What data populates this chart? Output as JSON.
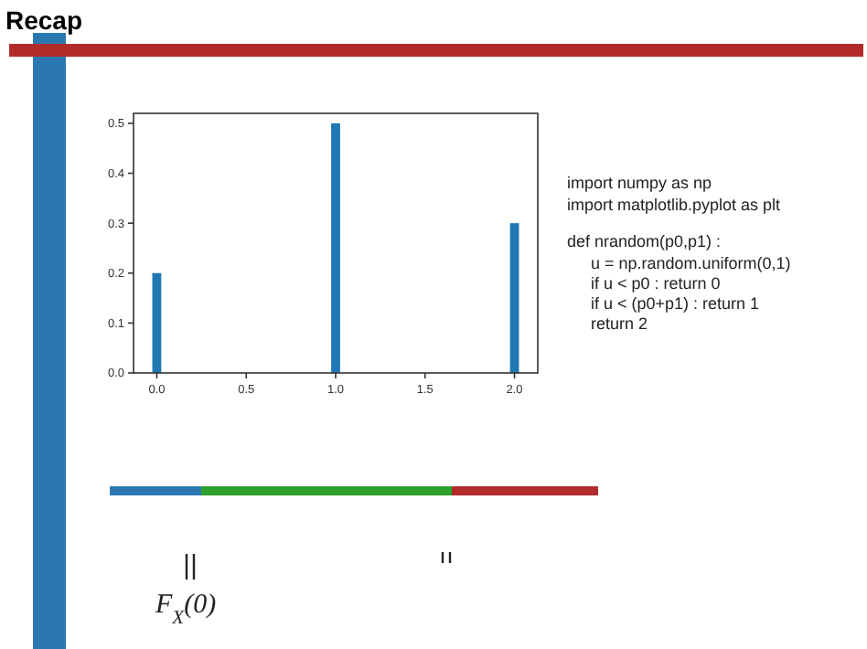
{
  "chart_data": {
    "type": "bar",
    "title": "Recap",
    "x": [
      0,
      1,
      2
    ],
    "series": [
      {
        "color": "#1f77b4",
        "values": [
          0.2,
          0.5,
          0.3
        ]
      }
    ],
    "xlim": [
      -0.13,
      2.13
    ],
    "ylim": [
      0,
      0.52
    ],
    "xticks": [
      {
        "value": 0,
        "label": "0.0"
      },
      {
        "value": 0.5,
        "label": "0.5"
      },
      {
        "value": 1,
        "label": "1.0"
      },
      {
        "value": 1.5,
        "label": "1.5"
      },
      {
        "value": 2,
        "label": "2.0"
      }
    ],
    "yticks": [
      {
        "value": 0,
        "label": "0.0"
      },
      {
        "value": 0.1,
        "label": "0.1"
      },
      {
        "value": 0.2,
        "label": "0.2"
      },
      {
        "value": 0.3,
        "label": "0.3"
      },
      {
        "value": 0.4,
        "label": "0.4"
      },
      {
        "value": 0.5,
        "label": "0.5"
      }
    ],
    "grid": false,
    "annotations": [
      "import numpy as np",
      "import matplotlib.pyplot as plt",
      "def nrandom(p0,p1) :",
      "u = np.random.uniform(0,1)",
      "if u < p0 : return 0",
      "if u < (p0+p1) : return 1",
      "return 2",
      "F$_{X}$(0)"
    ]
  }
}
